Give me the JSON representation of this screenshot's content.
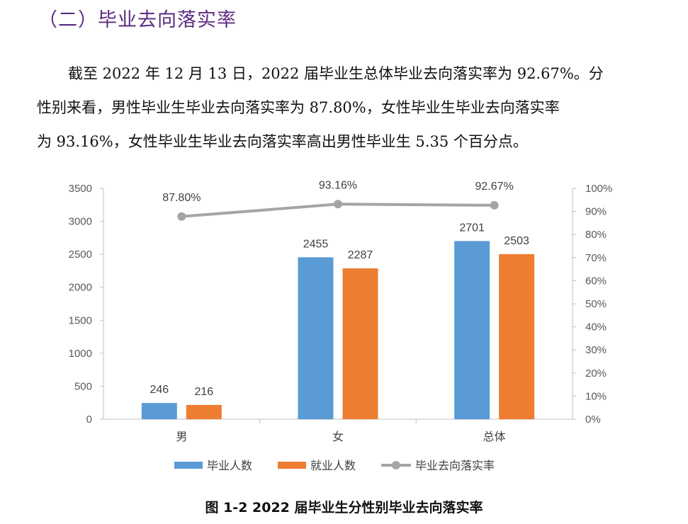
{
  "section_heading": "（二）毕业去向落实率",
  "paragraph": [
    "截至 2022 年 12 月 13 日，2022 届毕业生总体毕业去向落实率为 92.67%。分",
    "性别来看，男性毕业生毕业去向落实率为 87.80%，女性毕业生毕业去向落实率",
    "为 93.16%，女性毕业生毕业去向落实率高出男性毕业生 5.35 个百分点。"
  ],
  "caption": "图 1-2 2022 届毕业生分性别毕业去向落实率",
  "colors": {
    "graduates": "#5b9bd5",
    "employed": "#ed7d31",
    "rate": "#a5a5a5"
  },
  "chart_data": {
    "type": "bar",
    "categories": [
      "男",
      "女",
      "总体"
    ],
    "series": [
      {
        "name": "毕业人数",
        "type": "bar",
        "axis": "left",
        "values": [
          246,
          2455,
          2701
        ],
        "labels": [
          "246",
          "2455",
          "2701"
        ]
      },
      {
        "name": "就业人数",
        "type": "bar",
        "axis": "left",
        "values": [
          216,
          2287,
          2503
        ],
        "labels": [
          "216",
          "2287",
          "2503"
        ]
      },
      {
        "name": "毕业去向落实率",
        "type": "line",
        "axis": "right",
        "values": [
          87.8,
          93.16,
          92.67
        ],
        "labels": [
          "87.80%",
          "93.16%",
          "92.67%"
        ]
      }
    ],
    "ylim": [
      0,
      3500
    ],
    "y_ticks": [
      "0",
      "500",
      "1000",
      "1500",
      "2000",
      "2500",
      "3000",
      "3500"
    ],
    "y2lim": [
      0,
      100
    ],
    "y2_ticks": [
      "0%",
      "10%",
      "20%",
      "30%",
      "40%",
      "50%",
      "60%",
      "70%",
      "80%",
      "90%",
      "100%"
    ],
    "grid": false,
    "legend": "bottom"
  }
}
